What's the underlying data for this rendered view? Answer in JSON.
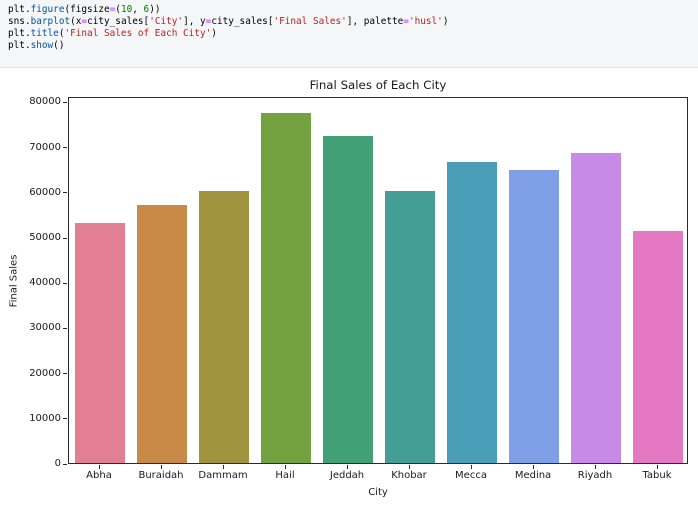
{
  "code": {
    "lines": [
      [
        [
          "plt",
          ""
        ],
        [
          ".",
          ""
        ],
        [
          "figure",
          "fn"
        ],
        [
          "(",
          ""
        ],
        [
          "figsize",
          ""
        ],
        [
          "=",
          "op"
        ],
        [
          "(",
          ""
        ],
        [
          "10",
          "num"
        ],
        [
          ", ",
          ""
        ],
        [
          "6",
          "num"
        ],
        [
          "))",
          ""
        ]
      ],
      [
        [
          "sns",
          ""
        ],
        [
          ".",
          ""
        ],
        [
          "barplot",
          "fn"
        ],
        [
          "(",
          ""
        ],
        [
          "x",
          ""
        ],
        [
          "=",
          "op"
        ],
        [
          "city_sales",
          ""
        ],
        [
          "[",
          ""
        ],
        [
          "'City'",
          "str"
        ],
        [
          "]",
          ""
        ],
        [
          ", ",
          ""
        ],
        [
          "y",
          ""
        ],
        [
          "=",
          "op"
        ],
        [
          "city_sales",
          ""
        ],
        [
          "[",
          ""
        ],
        [
          "'Final Sales'",
          "str"
        ],
        [
          "]",
          ""
        ],
        [
          ", ",
          ""
        ],
        [
          "palette",
          ""
        ],
        [
          "=",
          "op"
        ],
        [
          "'husl'",
          "str"
        ],
        [
          ")",
          ""
        ]
      ],
      [
        [
          "plt",
          ""
        ],
        [
          ".",
          ""
        ],
        [
          "title",
          "fn"
        ],
        [
          "(",
          ""
        ],
        [
          "'Final Sales of Each City'",
          "str"
        ],
        [
          ")",
          ""
        ]
      ],
      [
        [
          "plt",
          ""
        ],
        [
          ".",
          ""
        ],
        [
          "show",
          "fn"
        ],
        [
          "()",
          ""
        ]
      ]
    ]
  },
  "chart_data": {
    "type": "bar",
    "title": "Final Sales of Each City",
    "xlabel": "City",
    "ylabel": "Final Sales",
    "categories": [
      "Abha",
      "Buraidah",
      "Dammam",
      "Hail",
      "Jeddah",
      "Khobar",
      "Mecca",
      "Medina",
      "Riyadh",
      "Tabuk"
    ],
    "values": [
      53100,
      57100,
      60200,
      77500,
      72300,
      60100,
      66600,
      64900,
      68700,
      51400
    ],
    "bar_colors": [
      "#e37f92",
      "#c98a48",
      "#a1943f",
      "#74a241",
      "#42a077",
      "#449e97",
      "#4a9eb8",
      "#7f9fe6",
      "#c78ae6",
      "#e578c3"
    ],
    "palette": "husl",
    "yticks": [
      0,
      10000,
      20000,
      30000,
      40000,
      50000,
      60000,
      70000,
      80000
    ],
    "ylim": [
      0,
      81200
    ],
    "grid": false,
    "legend": null,
    "bar_width_fraction": 0.8
  }
}
